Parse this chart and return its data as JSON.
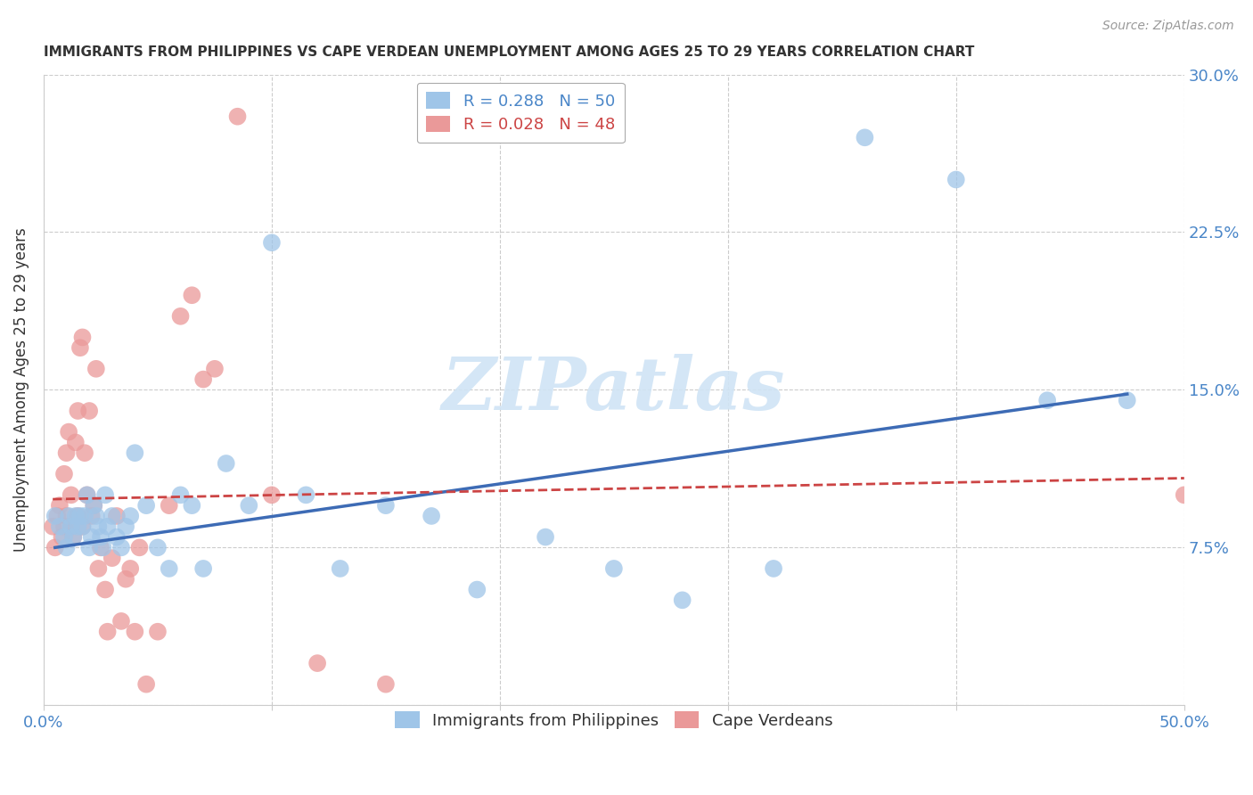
{
  "title": "IMMIGRANTS FROM PHILIPPINES VS CAPE VERDEAN UNEMPLOYMENT AMONG AGES 25 TO 29 YEARS CORRELATION CHART",
  "source": "Source: ZipAtlas.com",
  "ylabel": "Unemployment Among Ages 25 to 29 years",
  "xlim": [
    0.0,
    0.5
  ],
  "ylim": [
    0.0,
    0.3
  ],
  "yticks": [
    0.0,
    0.075,
    0.15,
    0.225,
    0.3
  ],
  "ytick_labels": [
    "",
    "7.5%",
    "15.0%",
    "22.5%",
    "30.0%"
  ],
  "xticks": [
    0.0,
    0.1,
    0.2,
    0.3,
    0.4,
    0.5
  ],
  "xtick_labels": [
    "0.0%",
    "",
    "",
    "",
    "",
    "50.0%"
  ],
  "legend_label1": "Immigrants from Philippines",
  "legend_label2": "Cape Verdeans",
  "R1": "0.288",
  "N1": "50",
  "R2": "0.028",
  "N2": "48",
  "blue_color": "#9fc5e8",
  "pink_color": "#ea9999",
  "line_blue": "#3d6bb5",
  "line_pink": "#cc4444",
  "axis_color": "#4a86c8",
  "text_color": "#333333",
  "source_color": "#999999",
  "grid_color": "#cccccc",
  "watermark_text": "ZIPatlas",
  "watermark_color": "#d0e4f5",
  "blue_scatter_x": [
    0.005,
    0.007,
    0.009,
    0.01,
    0.011,
    0.012,
    0.013,
    0.014,
    0.015,
    0.016,
    0.017,
    0.018,
    0.019,
    0.02,
    0.021,
    0.022,
    0.023,
    0.024,
    0.025,
    0.026,
    0.027,
    0.028,
    0.03,
    0.032,
    0.034,
    0.036,
    0.038,
    0.04,
    0.045,
    0.05,
    0.055,
    0.06,
    0.065,
    0.07,
    0.08,
    0.09,
    0.1,
    0.115,
    0.13,
    0.15,
    0.17,
    0.19,
    0.22,
    0.25,
    0.28,
    0.32,
    0.36,
    0.4,
    0.44,
    0.475
  ],
  "blue_scatter_y": [
    0.09,
    0.085,
    0.08,
    0.075,
    0.09,
    0.085,
    0.08,
    0.09,
    0.085,
    0.09,
    0.085,
    0.09,
    0.1,
    0.075,
    0.08,
    0.095,
    0.09,
    0.085,
    0.08,
    0.075,
    0.1,
    0.085,
    0.09,
    0.08,
    0.075,
    0.085,
    0.09,
    0.12,
    0.095,
    0.075,
    0.065,
    0.1,
    0.095,
    0.065,
    0.115,
    0.095,
    0.22,
    0.1,
    0.065,
    0.095,
    0.09,
    0.055,
    0.08,
    0.065,
    0.05,
    0.065,
    0.27,
    0.25,
    0.145,
    0.145
  ],
  "pink_scatter_x": [
    0.004,
    0.005,
    0.006,
    0.007,
    0.008,
    0.009,
    0.009,
    0.01,
    0.01,
    0.011,
    0.012,
    0.012,
    0.013,
    0.014,
    0.015,
    0.015,
    0.016,
    0.017,
    0.017,
    0.018,
    0.019,
    0.02,
    0.021,
    0.022,
    0.023,
    0.024,
    0.025,
    0.027,
    0.028,
    0.03,
    0.032,
    0.034,
    0.036,
    0.038,
    0.04,
    0.042,
    0.045,
    0.05,
    0.055,
    0.06,
    0.065,
    0.07,
    0.075,
    0.085,
    0.1,
    0.12,
    0.15,
    0.5
  ],
  "pink_scatter_y": [
    0.085,
    0.075,
    0.09,
    0.095,
    0.08,
    0.11,
    0.085,
    0.12,
    0.09,
    0.13,
    0.085,
    0.1,
    0.08,
    0.125,
    0.09,
    0.14,
    0.17,
    0.085,
    0.175,
    0.12,
    0.1,
    0.14,
    0.09,
    0.095,
    0.16,
    0.065,
    0.075,
    0.055,
    0.035,
    0.07,
    0.09,
    0.04,
    0.06,
    0.065,
    0.035,
    0.075,
    0.01,
    0.035,
    0.095,
    0.185,
    0.195,
    0.155,
    0.16,
    0.28,
    0.1,
    0.02,
    0.01,
    0.1
  ],
  "blue_line_x0": 0.005,
  "blue_line_x1": 0.475,
  "blue_line_y0": 0.075,
  "blue_line_y1": 0.148,
  "pink_line_x0": 0.004,
  "pink_line_x1": 0.5,
  "pink_line_y0": 0.098,
  "pink_line_y1": 0.108
}
